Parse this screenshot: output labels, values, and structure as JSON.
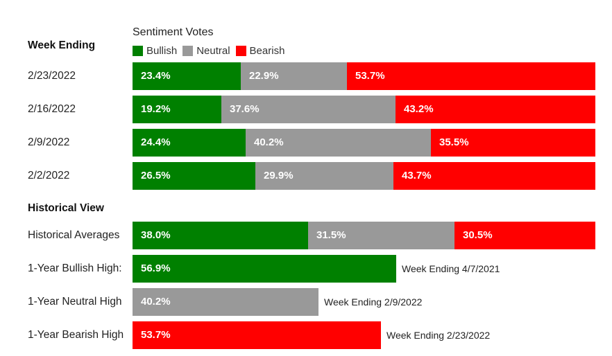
{
  "chart_data": {
    "type": "bar",
    "orientation": "horizontal",
    "stacked": true,
    "title": "Sentiment Votes",
    "colors": {
      "Bullish": "#008000",
      "Neutral": "#999999",
      "Bearish": "#ff0000"
    },
    "legend": [
      {
        "name": "Bullish",
        "color": "#008000"
      },
      {
        "name": "Neutral",
        "color": "#999999"
      },
      {
        "name": "Bearish",
        "color": "#ff0000"
      }
    ],
    "weekly": {
      "header": "Week Ending",
      "rows": [
        {
          "label": "2/23/2022",
          "values": [
            23.4,
            22.9,
            53.7
          ],
          "labels": [
            "23.4%",
            "22.9%",
            "53.7%"
          ]
        },
        {
          "label": "2/16/2022",
          "values": [
            19.2,
            37.6,
            43.2
          ],
          "labels": [
            "19.2%",
            "37.6%",
            "43.2%"
          ]
        },
        {
          "label": "2/9/2022",
          "values": [
            24.4,
            40.2,
            35.5
          ],
          "labels": [
            "24.4%",
            "40.2%",
            "35.5%"
          ]
        },
        {
          "label": "2/2/2022",
          "values": [
            26.5,
            29.9,
            43.7
          ],
          "labels": [
            "26.5%",
            "29.9%",
            "43.7%"
          ]
        }
      ]
    },
    "historical": {
      "header": "Historical View",
      "averages": {
        "label": "Historical Averages",
        "values": [
          38.0,
          31.5,
          30.5
        ],
        "labels": [
          "38.0%",
          "31.5%",
          "30.5%"
        ]
      },
      "highs": [
        {
          "label": "1-Year Bullish High:",
          "series": "Bullish",
          "value": 56.9,
          "value_label": "56.9%",
          "note": "Week Ending 4/7/2021"
        },
        {
          "label": "1-Year Neutral High",
          "series": "Neutral",
          "value": 40.2,
          "value_label": "40.2%",
          "note": "Week Ending 2/9/2022"
        },
        {
          "label": "1-Year Bearish High",
          "series": "Bearish",
          "value": 53.7,
          "value_label": "53.7%",
          "note": "Week Ending 2/23/2022"
        }
      ]
    }
  }
}
